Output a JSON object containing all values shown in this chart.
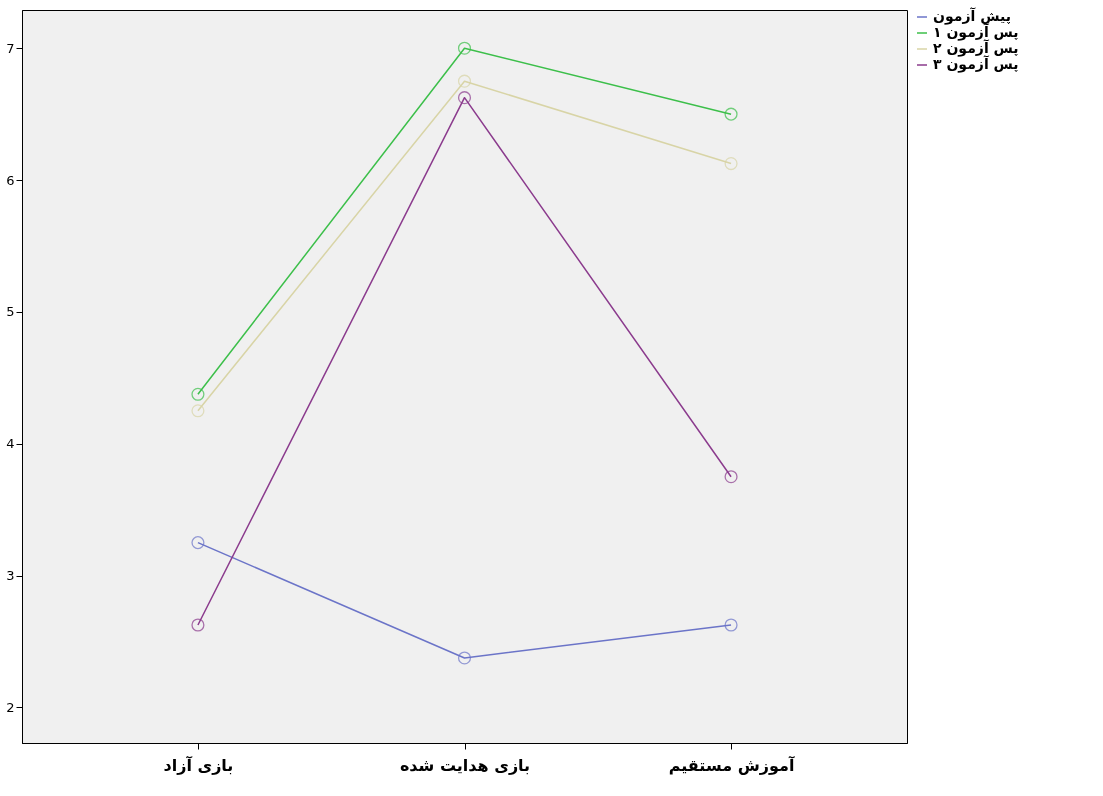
{
  "chart_data": {
    "type": "line",
    "categories": [
      "بازی آزاد",
      "بازی هدایت شده",
      "آموزش مستقیم"
    ],
    "series": [
      {
        "name": "پیش آزمون",
        "color": "#6b74c8",
        "values": [
          3.25,
          2.375,
          2.625
        ]
      },
      {
        "name": "پس آزمون ۱",
        "color": "#3cbf4a",
        "values": [
          4.375,
          7.0,
          6.5
        ]
      },
      {
        "name": "پس آزمون ۲",
        "color": "#d8d4a6",
        "values": [
          4.25,
          6.75,
          6.125
        ]
      },
      {
        "name": "پس آزمون ۳",
        "color": "#8b3b8d",
        "values": [
          2.625,
          6.625,
          3.75
        ]
      }
    ],
    "ylim": [
      1.73,
      7.29
    ],
    "yticks": [
      2,
      3,
      4,
      5,
      6,
      7
    ],
    "grid": false,
    "legend": "top right",
    "marker": "circle",
    "line_style": "solid"
  }
}
